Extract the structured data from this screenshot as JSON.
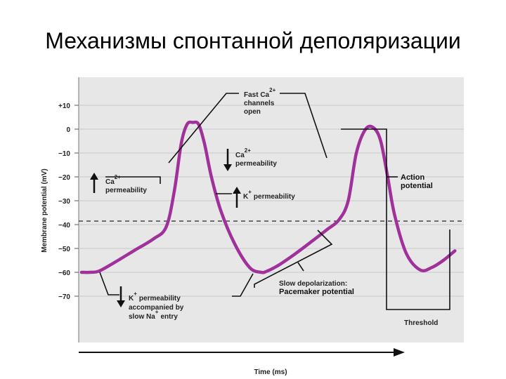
{
  "title": "Механизмы спонтанной деполяризации",
  "colors": {
    "trace": "#a0319a",
    "panel": "#e7e7e7",
    "ink": "#111111"
  },
  "axes": {
    "ylabel": "Membrane potential (mV)",
    "xlabel": "Time (ms)",
    "y_ticks": [
      "+10",
      "0",
      "−10",
      "−20",
      "−30",
      "−40",
      "−50",
      "−60",
      "−70"
    ]
  },
  "labels": {
    "fast_ca": [
      "Fast Ca",
      "2+",
      "channels",
      "open"
    ],
    "ca_down": [
      "Ca",
      "2+",
      "permeability"
    ],
    "k_up": [
      "K",
      "+",
      "permeability"
    ],
    "ca_up": [
      "Ca",
      "2+",
      "permeability"
    ],
    "action": [
      "Action",
      "potential"
    ],
    "slow_depol": [
      "Slow depolarization:",
      "Pacemaker potential"
    ],
    "k_down": [
      "K",
      "+",
      "permeability",
      "accompanied by",
      "slow Na",
      "+",
      "entry"
    ],
    "threshold": "Threshold"
  },
  "chart_data": {
    "type": "line",
    "xlabel": "Time (ms)",
    "ylabel": "Membrane potential (mV)",
    "ylim": [
      -73,
      12
    ],
    "threshold": -40,
    "series": [
      {
        "x": [
          0,
          7,
          15,
          28,
          45,
          62,
          73,
          80,
          86,
          91,
          96,
          101,
          106,
          112,
          120,
          132,
          145,
          155,
          160,
          170,
          185,
          200,
          212,
          222,
          230,
          237,
          245,
          252,
          258,
          264,
          270,
          280,
          292,
          302,
          312,
          322
        ],
        "y": [
          -60,
          -60,
          -59.5,
          -56,
          -51,
          -46,
          -41,
          -26,
          -6,
          2,
          2.8,
          2,
          -6,
          -20,
          -34,
          -48,
          -58,
          -60,
          -59.5,
          -57,
          -52,
          -46.5,
          -42,
          -38,
          -30,
          -10,
          0,
          0.5,
          -5,
          -20,
          -36,
          -52,
          -59,
          -58,
          -55,
          -51
        ]
      }
    ]
  }
}
